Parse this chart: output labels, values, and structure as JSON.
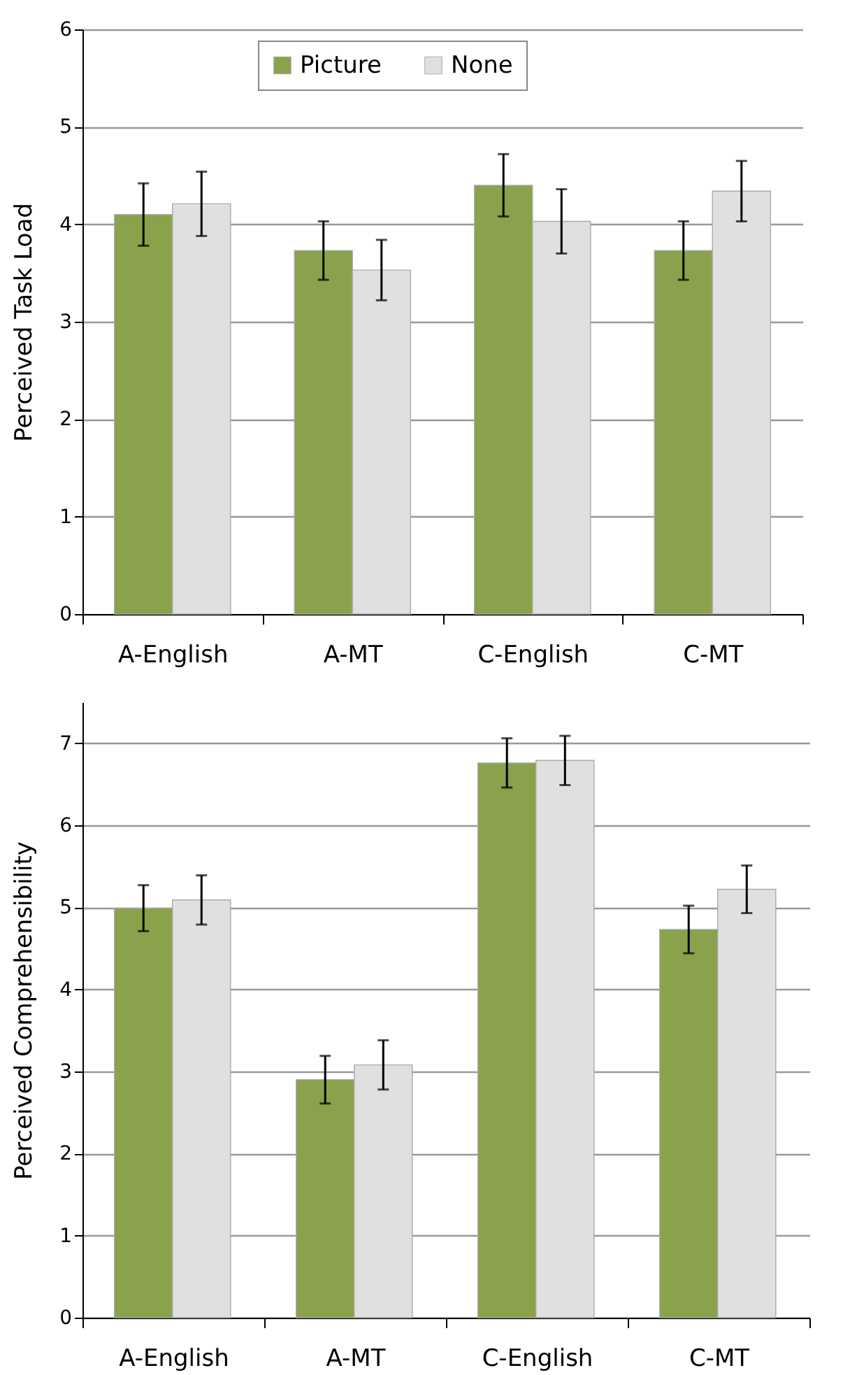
{
  "chart_data": [
    {
      "type": "bar",
      "ylabel": "Perceived Task Load",
      "categories": [
        "A-English",
        "A-MT",
        "C-English",
        "C-MT"
      ],
      "series": [
        {
          "name": "Picture",
          "color": "#8aa24b",
          "values": [
            4.1,
            3.73,
            4.4,
            3.73
          ],
          "errors": [
            0.32,
            0.3,
            0.32,
            0.3
          ]
        },
        {
          "name": "None",
          "color": "#e0e0e0",
          "values": [
            4.21,
            3.53,
            4.03,
            4.34
          ],
          "errors": [
            0.33,
            0.31,
            0.33,
            0.31
          ]
        }
      ],
      "ylim": [
        0,
        6
      ],
      "yticks": [
        0,
        1,
        2,
        3,
        4,
        5,
        6
      ],
      "grid": "y",
      "legend": "top"
    },
    {
      "type": "bar",
      "ylabel": "Perceived Comprehensibility",
      "categories": [
        "A-English",
        "A-MT",
        "C-English",
        "C-MT"
      ],
      "series": [
        {
          "name": "Picture",
          "color": "#8aa24b",
          "values": [
            4.99,
            2.9,
            6.76,
            4.73
          ],
          "errors": [
            0.28,
            0.29,
            0.3,
            0.29
          ]
        },
        {
          "name": "None",
          "color": "#e0e0e0",
          "values": [
            5.09,
            3.08,
            6.79,
            5.22
          ],
          "errors": [
            0.3,
            0.3,
            0.3,
            0.29
          ]
        }
      ],
      "ylim": [
        0,
        7.5
      ],
      "yticks": [
        0,
        1,
        2,
        3,
        4,
        5,
        6,
        7
      ],
      "grid": "y",
      "legend": "top left"
    }
  ]
}
